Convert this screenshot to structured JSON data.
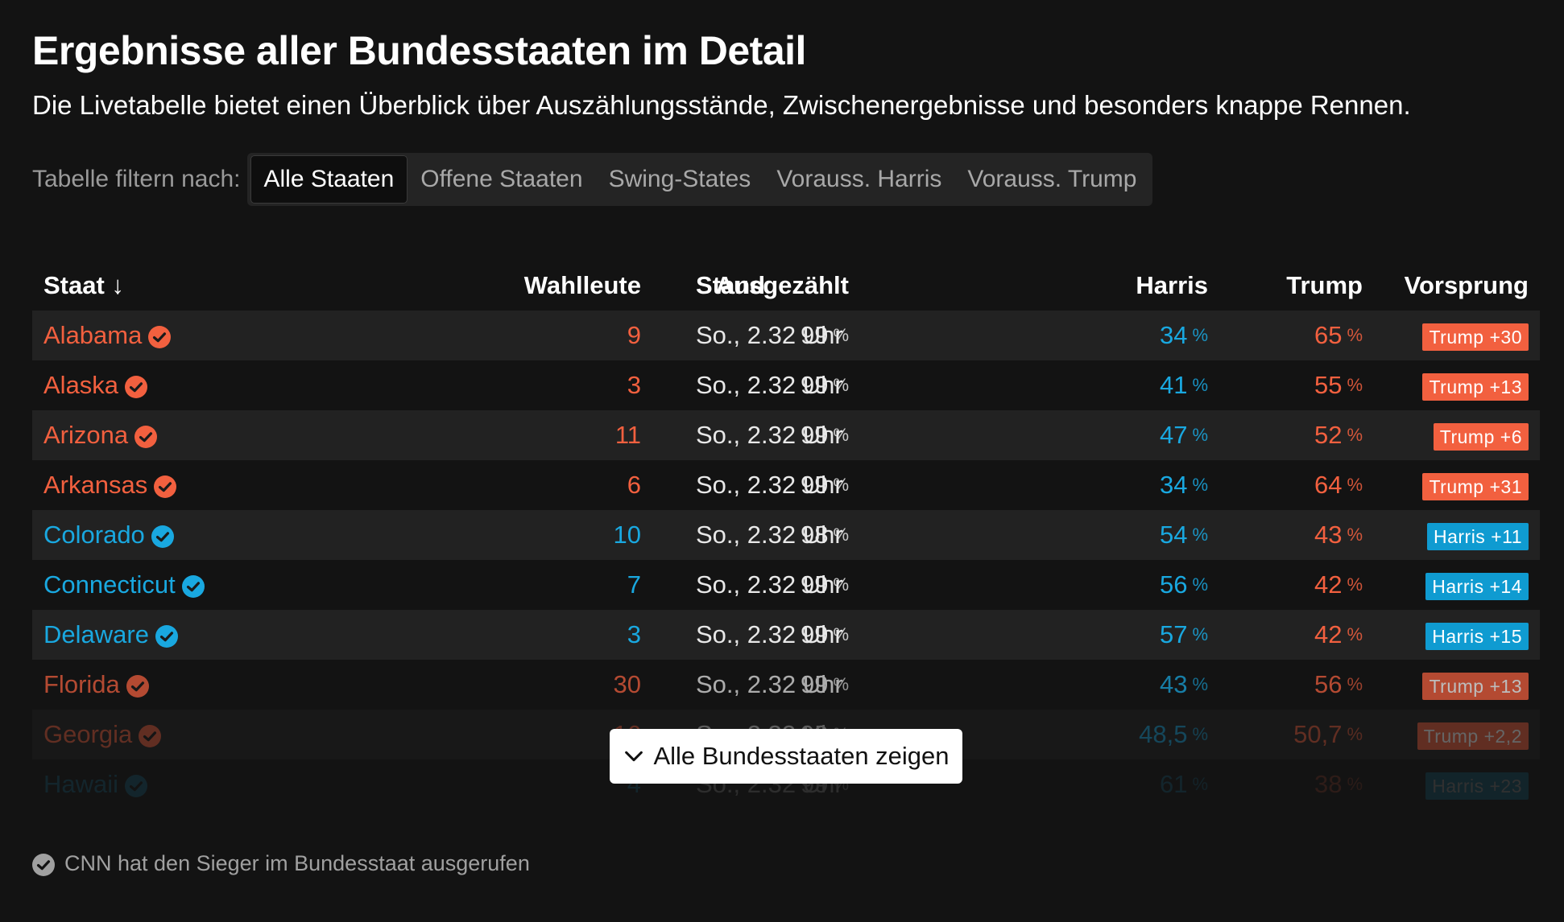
{
  "title": "Ergebnisse aller Bundesstaaten im Detail",
  "subtitle": "Die Livetabelle bietet einen Überblick über Auszählungsstände, Zwischenergebnisse und besonders knappe Rennen.",
  "filter": {
    "label": "Tabelle filtern nach:",
    "options": [
      "Alle Staaten",
      "Offene Staaten",
      "Swing-States",
      "Vorauss. Harris",
      "Vorauss. Trump"
    ],
    "active": "Alle Staaten"
  },
  "table": {
    "headers": {
      "state": "Staat",
      "sort_arrow": "↓",
      "electors": "Wahlleute",
      "counted": "Ausgezählt",
      "time": "Stand",
      "harris": "Harris",
      "trump": "Trump",
      "lead": "Vorsprung"
    },
    "pct_symbol": "%",
    "rows": [
      {
        "state": "Alabama",
        "winner": "trump",
        "electors": "9",
        "counted": "99",
        "time": "So., 2.32 Uhr",
        "harris": "34",
        "trump": "65",
        "lead": "Trump +30"
      },
      {
        "state": "Alaska",
        "winner": "trump",
        "electors": "3",
        "counted": "99",
        "time": "So., 2.32 Uhr",
        "harris": "41",
        "trump": "55",
        "lead": "Trump +13"
      },
      {
        "state": "Arizona",
        "winner": "trump",
        "electors": "11",
        "counted": "99",
        "time": "So., 2.32 Uhr",
        "harris": "47",
        "trump": "52",
        "lead": "Trump +6"
      },
      {
        "state": "Arkansas",
        "winner": "trump",
        "electors": "6",
        "counted": "99",
        "time": "So., 2.32 Uhr",
        "harris": "34",
        "trump": "64",
        "lead": "Trump +31"
      },
      {
        "state": "Colorado",
        "winner": "harris",
        "electors": "10",
        "counted": "98",
        "time": "So., 2.32 Uhr",
        "harris": "54",
        "trump": "43",
        "lead": "Harris +11"
      },
      {
        "state": "Connecticut",
        "winner": "harris",
        "electors": "7",
        "counted": "99",
        "time": "So., 2.32 Uhr",
        "harris": "56",
        "trump": "42",
        "lead": "Harris +14"
      },
      {
        "state": "Delaware",
        "winner": "harris",
        "electors": "3",
        "counted": "99",
        "time": "So., 2.32 Uhr",
        "harris": "57",
        "trump": "42",
        "lead": "Harris +15"
      },
      {
        "state": "Florida",
        "winner": "trump",
        "electors": "30",
        "counted": "99",
        "time": "So., 2.32 Uhr",
        "harris": "43",
        "trump": "56",
        "lead": "Trump +13"
      },
      {
        "state": "Georgia",
        "winner": "trump",
        "electors": "16",
        "counted": "99",
        "time": "So., 2.32 Uhr",
        "harris": "48,5",
        "trump": "50,7",
        "lead": "Trump +2,2"
      },
      {
        "state": "Hawaii",
        "winner": "harris",
        "electors": "4",
        "counted": "99",
        "time": "So., 2.32 Uhr",
        "harris": "61",
        "trump": "38",
        "lead": "Harris +23"
      }
    ]
  },
  "show_all_button": "Alle Bundesstaaten zeigen",
  "legend_text": "CNN hat den Sieger im Bundesstaat ausgerufen",
  "colors": {
    "background": "#131313",
    "row_alt": "#222222",
    "trump": "#f2603f",
    "harris": "#19a8e0",
    "harris_badge": "#0f9bd1",
    "muted": "#a0a0a0"
  },
  "icons": {
    "check": "check-circle-icon",
    "sort": "arrow-down-icon",
    "chevron": "chevron-down-icon"
  }
}
